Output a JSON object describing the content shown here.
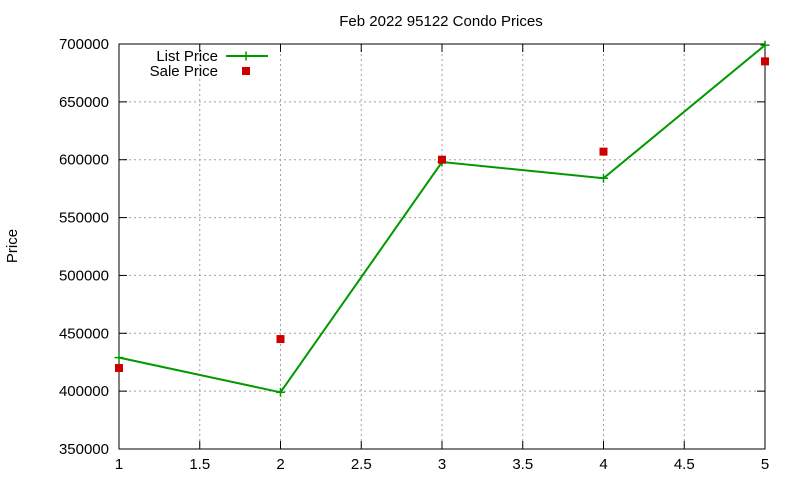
{
  "chart_data": {
    "type": "line",
    "title": "Feb 2022 95122 Condo Prices",
    "xlabel": "",
    "ylabel": "Price",
    "xlim": [
      1,
      5
    ],
    "ylim": [
      350000,
      700000
    ],
    "x_ticks": [
      1,
      1.5,
      2,
      2.5,
      3,
      3.5,
      4,
      4.5,
      5
    ],
    "x_tick_labels": [
      "1",
      "1.5",
      "2",
      "2.5",
      "3",
      "3.5",
      "4",
      "4.5",
      "5"
    ],
    "y_ticks": [
      350000,
      400000,
      450000,
      500000,
      550000,
      600000,
      650000,
      700000
    ],
    "y_tick_labels": [
      "350000",
      "400000",
      "450000",
      "500000",
      "550000",
      "600000",
      "650000",
      "700000"
    ],
    "grid": true,
    "legend_position": "top-left",
    "series": [
      {
        "name": "List Price",
        "type": "linespoints",
        "color": "#009900",
        "marker": "plus",
        "x": [
          1,
          2,
          3,
          4,
          5
        ],
        "y": [
          429000,
          399000,
          598000,
          584000,
          699000
        ]
      },
      {
        "name": "Sale Price",
        "type": "points",
        "color": "#cc0000",
        "marker": "square",
        "x": [
          1,
          2,
          3,
          4,
          5
        ],
        "y": [
          420000,
          445000,
          600000,
          607000,
          685000
        ]
      }
    ]
  }
}
